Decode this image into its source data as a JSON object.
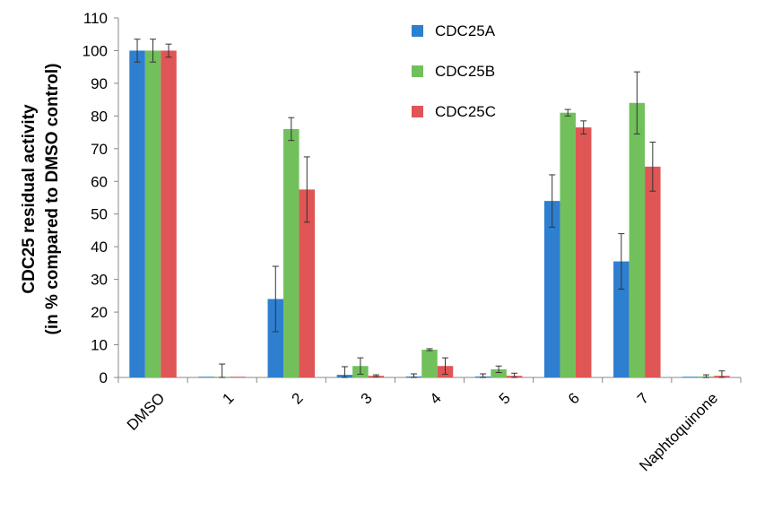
{
  "chart_data": {
    "type": "bar",
    "ylabel_lines": [
      "CDC25 residual activity",
      "(in % compared to DMSO control)"
    ],
    "categories": [
      "DMSO",
      "1",
      "2",
      "3",
      "4",
      "5",
      "6",
      "7",
      "Naphtoquinone"
    ],
    "ylim": [
      0,
      110
    ],
    "yticks": [
      0,
      10,
      20,
      30,
      40,
      50,
      60,
      70,
      80,
      90,
      100,
      110
    ],
    "grid": false,
    "legend_position": "top-center",
    "series": [
      {
        "name": "CDC25A",
        "color": "#2e7fd0",
        "values": [
          100,
          0.1,
          24,
          0.8,
          0.3,
          0.3,
          54,
          35.5,
          0.1
        ],
        "errors": [
          3.5,
          0,
          10,
          2.5,
          0.8,
          0.8,
          8,
          8.5,
          0
        ]
      },
      {
        "name": "CDC25B",
        "color": "#72c05b",
        "values": [
          100,
          0.1,
          76,
          3.5,
          8.5,
          2.5,
          81,
          84,
          0.3
        ],
        "errors": [
          3.5,
          4,
          3.5,
          2.5,
          0.3,
          1,
          1,
          9.5,
          0.5
        ]
      },
      {
        "name": "CDC25C",
        "color": "#e05555",
        "values": [
          100,
          0.1,
          57.5,
          0.5,
          3.5,
          0.5,
          76.5,
          64.5,
          0.5
        ],
        "errors": [
          2,
          0,
          10,
          0.3,
          2.5,
          0.8,
          2,
          7.5,
          1.5
        ]
      }
    ]
  }
}
